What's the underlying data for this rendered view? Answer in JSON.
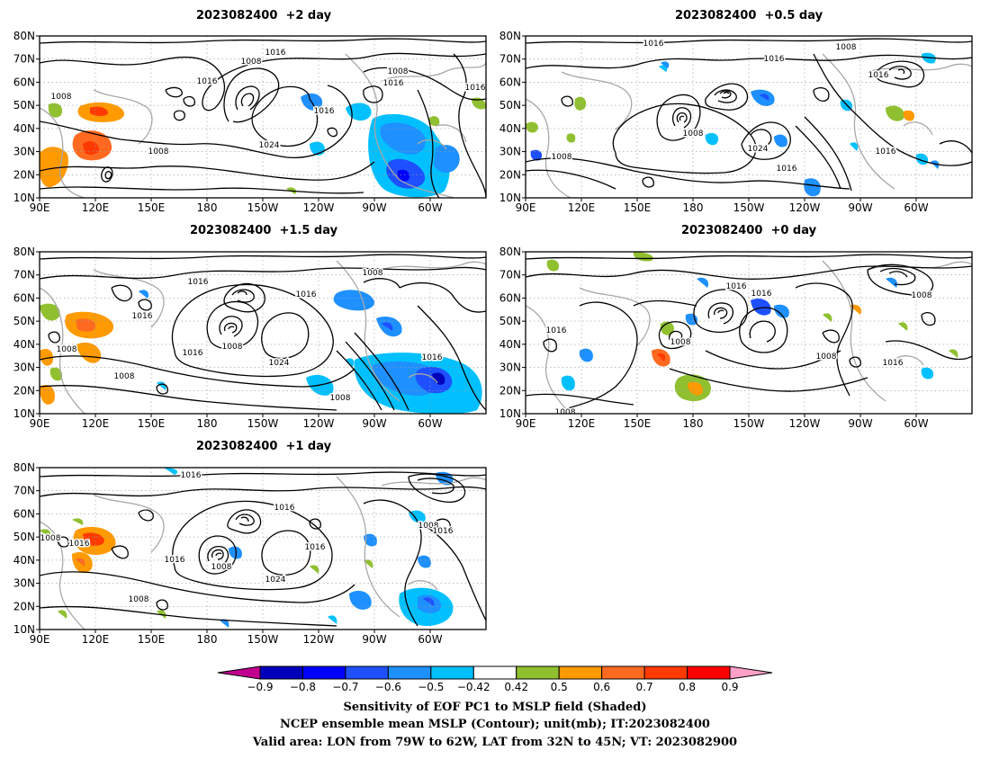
{
  "panels": [
    {
      "title": "2023082400  +2 day"
    },
    {
      "title": "2023082400  +0.5 day"
    },
    {
      "title": "2023082400  +1.5 day"
    },
    {
      "title": "2023082400  +0 day"
    },
    {
      "title": "2023082400  +1 day"
    }
  ],
  "axes": {
    "lon_labels": [
      "90E",
      "120E",
      "150E",
      "180",
      "150W",
      "120W",
      "90W",
      "60W"
    ],
    "lat_labels": [
      "80N",
      "70N",
      "60N",
      "50N",
      "40N",
      "30N",
      "20N",
      "10N"
    ]
  },
  "colorbar": {
    "colors": [
      "#c2008f",
      "#0000bb",
      "#0000ff",
      "#1e50ff",
      "#1e90ff",
      "#00c0ff",
      "#ffffff",
      "#90c030",
      "#ff9a00",
      "#ff6a20",
      "#ff3a00",
      "#ff0000",
      "#ffa0c8"
    ],
    "tick_labels": [
      "−0.9",
      "−0.8",
      "−0.7",
      "−0.6",
      "−0.5",
      "−0.42",
      "0.42",
      "0.5",
      "0.6",
      "0.7",
      "0.8",
      "0.9"
    ]
  },
  "caption": {
    "line1": "Sensitivity of EOF PC1 to MSLP field (Shaded)",
    "line2": "NCEP ensemble mean MSLP (Contour); unit(mb); IT:2023082400",
    "line3": "Valid area: LON from 79W to 62W, LAT from 32N to 45N; VT: 2023082900"
  },
  "contour_labels": {
    "p0": [
      "1016",
      "1008",
      "1016",
      "1008",
      "1016",
      "1016",
      "1008",
      "1024",
      "1008",
      "1016"
    ],
    "p1": [
      "1016",
      "1008",
      "1016",
      "1016",
      "1008",
      "1024",
      "1016",
      "1008",
      "1016"
    ],
    "p2": [
      "1016",
      "1016",
      "1016",
      "1008",
      "1016",
      "1008",
      "1024",
      "1008",
      "1008",
      "1016",
      "1008"
    ],
    "p3": [
      "1016",
      "1016",
      "1016",
      "1008",
      "1008",
      "1008",
      "1016",
      "1008"
    ],
    "p4": [
      "1016",
      "1016",
      "1008",
      "1016",
      "1016",
      "1008",
      "1024",
      "1008",
      "1016",
      "1008",
      "1016"
    ]
  }
}
